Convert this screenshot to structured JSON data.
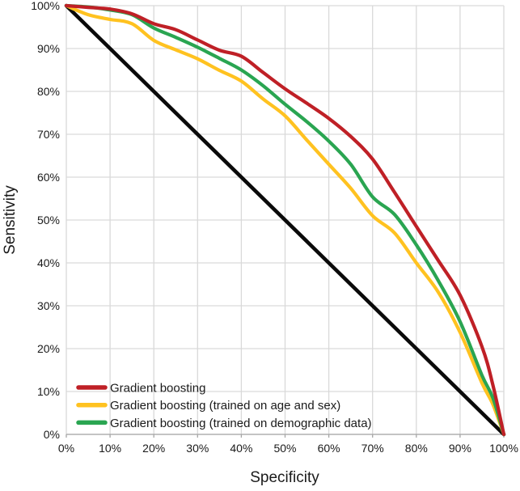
{
  "figure": {
    "description": "ROC curves comparing gradient boosting models"
  },
  "chart_data": {
    "type": "line",
    "title": "",
    "xlabel": "Specificity",
    "ylabel": "Sensitivity",
    "xlim": [
      0,
      100
    ],
    "ylim": [
      0,
      100
    ],
    "grid": true,
    "legend_position": "inside bottom-left",
    "x_ticks": [
      "0%",
      "10%",
      "20%",
      "30%",
      "40%",
      "50%",
      "60%",
      "70%",
      "80%",
      "90%",
      "100%"
    ],
    "y_ticks": [
      "0%",
      "10%",
      "20%",
      "30%",
      "40%",
      "50%",
      "60%",
      "70%",
      "80%",
      "90%",
      "100%"
    ],
    "x": [
      0,
      5,
      10,
      15,
      20,
      25,
      30,
      35,
      40,
      45,
      50,
      55,
      60,
      65,
      70,
      75,
      80,
      85,
      90,
      95,
      97.5,
      100
    ],
    "series": [
      {
        "id": "gradient-boosting",
        "name": "Gradient boosting",
        "color": "#bf2026",
        "values": [
          100,
          99.6,
          99.2,
          98.1,
          95.8,
          94.4,
          92.0,
          89.6,
          88.2,
          84.4,
          80.6,
          77.2,
          73.7,
          69.5,
          64.2,
          56.5,
          48.5,
          40.6,
          32.5,
          20.5,
          11.5,
          0
        ]
      },
      {
        "id": "gradient-boosting-age-sex",
        "name": "Gradient boosting (trained on age and sex)",
        "color": "#ffc220",
        "values": [
          100,
          97.9,
          96.8,
          95.8,
          91.9,
          89.7,
          87.6,
          84.9,
          82.4,
          78.2,
          74.3,
          68.6,
          63.0,
          57.4,
          51.0,
          47.0,
          40.0,
          33.2,
          23.8,
          12.0,
          7.0,
          0
        ]
      },
      {
        "id": "gradient-boosting-demographic",
        "name": "Gradient boosting (trained on demographic data)",
        "color": "#2aa551",
        "values": [
          100,
          99.7,
          99.0,
          97.9,
          94.8,
          92.6,
          90.3,
          87.7,
          85.0,
          81.3,
          77.0,
          72.9,
          68.4,
          63.0,
          55.4,
          51.3,
          44.2,
          35.9,
          26.3,
          13.8,
          8.5,
          0
        ]
      }
    ],
    "reference_line": {
      "id": "reference-diagonal",
      "color": "#0a0a0a",
      "points": [
        [
          0,
          100
        ],
        [
          100,
          0
        ]
      ]
    },
    "colors": {
      "grid": "#d9d9d9",
      "axis": "#a6a6a6",
      "text": "#1a1a1a"
    }
  }
}
